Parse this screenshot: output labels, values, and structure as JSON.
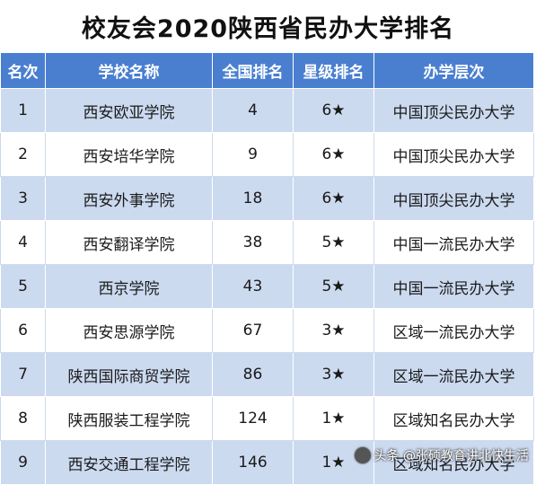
{
  "title": "校友会2020陕西省民办大学排名",
  "table": {
    "headers": [
      "名次",
      "学校名称",
      "全国排名",
      "星级排名",
      "办学层次"
    ],
    "rows": [
      [
        "1",
        "西安欧亚学院",
        "4",
        "6★",
        "中国顶尖民办大学"
      ],
      [
        "2",
        "西安培华学院",
        "9",
        "6★",
        "中国顶尖民办大学"
      ],
      [
        "3",
        "西安外事学院",
        "18",
        "6★",
        "中国顶尖民办大学"
      ],
      [
        "4",
        "西安翻译学院",
        "38",
        "5★",
        "中国一流民办大学"
      ],
      [
        "5",
        "西京学院",
        "43",
        "5★",
        "中国一流民办大学"
      ],
      [
        "6",
        "西安思源学院",
        "67",
        "3★",
        "区域一流民办大学"
      ],
      [
        "7",
        "陕西国际商贸学院",
        "86",
        "3★",
        "区域一流民办大学"
      ],
      [
        "8",
        "陕西服装工程学院",
        "124",
        "1★",
        "区域知名民办大学"
      ],
      [
        "9",
        "西安交通工程学院",
        "146",
        "1★",
        "区域知名民办大学"
      ]
    ]
  },
  "watermark": {
    "text": "头条 @张硕教育讲北快生活"
  },
  "colors": {
    "header_bg": "#4a7fd0",
    "band_bg": "#ccdaf0"
  }
}
